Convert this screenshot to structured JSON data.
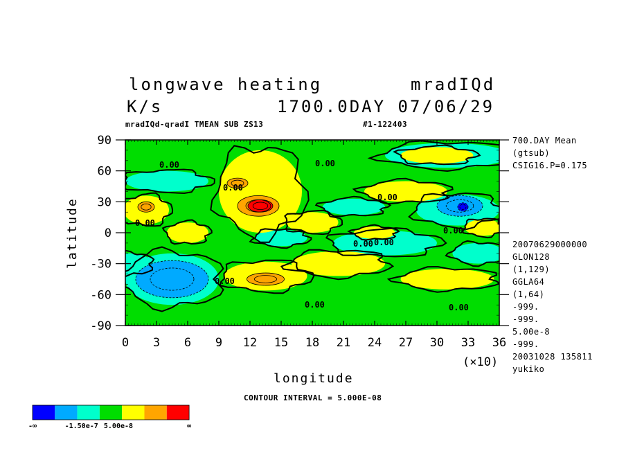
{
  "header": {
    "title": "longwave heating",
    "dataset": "mradIQd",
    "units": "K/s",
    "datetime": "1700.0DAY 07/06/29",
    "subtitle": "mradIQd-qradI TMEAN SUB ZS13",
    "run_id": "#1-122403"
  },
  "side_info": {
    "top": [
      "700.DAY Mean",
      "(gtsub)",
      "CSIG16.P=0.175"
    ],
    "bottom": [
      "20070629000000",
      "GLON128",
      "(1,129)",
      "GGLA64",
      "(1,64)",
      "-999.",
      "-999.",
      "5.00e-8",
      "-999.",
      "20031028 135811",
      "yukiko"
    ]
  },
  "colorbar": {
    "colors": [
      "#0000ff",
      "#00aaff",
      "#00ffcc",
      "#00dd00",
      "#ffff00",
      "#ffa500",
      "#ff0000"
    ],
    "labels": [
      "-∞",
      "-1.50e-7",
      "5.00e-8",
      "∞"
    ]
  },
  "chart_data": {
    "type": "heatmap",
    "title": "longwave heating",
    "xlabel": "longitude",
    "ylabel": "latitude",
    "x_multiplier": "(×10)",
    "x_ticks": [
      0,
      3,
      6,
      9,
      12,
      15,
      18,
      21,
      24,
      27,
      30,
      33,
      36
    ],
    "y_ticks": [
      90,
      60,
      30,
      0,
      -30,
      -60,
      -90
    ],
    "xlim": [
      0,
      360
    ],
    "ylim": [
      -90,
      90
    ],
    "contour_interval": "CONTOUR INTERVAL = 5.000E-08",
    "contour_labels": [
      "0.00",
      "0.00",
      "0.00",
      "0.00",
      "0.00",
      "0.00",
      "0.00",
      "0.00",
      "0.00",
      "0.00",
      "0.00"
    ],
    "background_color": "#00dd00",
    "regions": [
      {
        "level": "high",
        "color": "#ff0000",
        "lon": 130,
        "lat": 26,
        "rx": 12,
        "ry": 6
      },
      {
        "level": "mid",
        "color": "#ffa500",
        "lon": 128,
        "lat": 26,
        "rx": 20,
        "ry": 10
      },
      {
        "level": "mid",
        "color": "#ffa500",
        "lon": 135,
        "lat": -45,
        "rx": 18,
        "ry": 6
      },
      {
        "level": "mid",
        "color": "#ffa500",
        "lon": 20,
        "lat": 25,
        "rx": 8,
        "ry": 5
      },
      {
        "level": "mid",
        "color": "#ffa500",
        "lon": 108,
        "lat": 48,
        "rx": 10,
        "ry": 5
      },
      {
        "level": "low",
        "color": "#0000ff",
        "lon": 325,
        "lat": 25,
        "rx": 5,
        "ry": 4
      },
      {
        "level": "low",
        "color": "#00aaff",
        "lon": 45,
        "lat": -45,
        "rx": 35,
        "ry": 18
      },
      {
        "level": "low",
        "color": "#00aaff",
        "lon": 322,
        "lat": 26,
        "rx": 22,
        "ry": 10
      }
    ],
    "warm_regions": [
      {
        "lon": 130,
        "lat": 40,
        "rx": 40,
        "ry": 40
      },
      {
        "lon": 135,
        "lat": -42,
        "rx": 40,
        "ry": 14
      },
      {
        "lon": 20,
        "lat": 22,
        "rx": 22,
        "ry": 14
      },
      {
        "lon": 60,
        "lat": 0,
        "rx": 20,
        "ry": 10
      },
      {
        "lon": 270,
        "lat": 40,
        "rx": 40,
        "ry": 10
      },
      {
        "lon": 310,
        "lat": -45,
        "rx": 45,
        "ry": 10
      },
      {
        "lon": 205,
        "lat": -30,
        "rx": 45,
        "ry": 12
      },
      {
        "lon": 345,
        "lat": 5,
        "rx": 18,
        "ry": 8
      },
      {
        "lon": 180,
        "lat": 10,
        "rx": 25,
        "ry": 10
      },
      {
        "lon": 300,
        "lat": 75,
        "rx": 35,
        "ry": 8
      },
      {
        "lon": 240,
        "lat": 0,
        "rx": 20,
        "ry": 6
      }
    ],
    "cool_regions": [
      {
        "lon": 45,
        "lat": -45,
        "rx": 45,
        "ry": 25
      },
      {
        "lon": 310,
        "lat": 75,
        "rx": 60,
        "ry": 12
      },
      {
        "lon": 320,
        "lat": 22,
        "rx": 40,
        "ry": 15
      },
      {
        "lon": 40,
        "lat": 50,
        "rx": 40,
        "ry": 10
      },
      {
        "lon": 250,
        "lat": -10,
        "rx": 50,
        "ry": 12
      },
      {
        "lon": 220,
        "lat": 25,
        "rx": 30,
        "ry": 8
      },
      {
        "lon": 5,
        "lat": -30,
        "rx": 20,
        "ry": 10
      },
      {
        "lon": 340,
        "lat": -20,
        "rx": 25,
        "ry": 10
      },
      {
        "lon": 150,
        "lat": -5,
        "rx": 25,
        "ry": 8
      }
    ]
  }
}
